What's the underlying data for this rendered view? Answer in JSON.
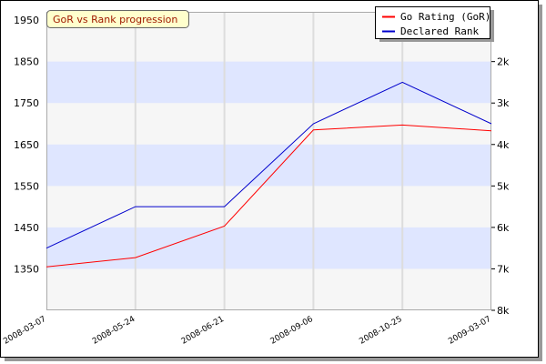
{
  "chart_data": {
    "type": "line",
    "title": "GoR vs Rank progression",
    "x": [
      "2008-03-07",
      "2008-05-24",
      "2008-06-21",
      "2008-09-06",
      "2008-10-25",
      "2009-03-07"
    ],
    "y_left_ticks": [
      "1950",
      "1850",
      "1750",
      "1650",
      "1550",
      "1450",
      "1350"
    ],
    "y_left_tick_values": [
      1950,
      1850,
      1750,
      1650,
      1550,
      1450,
      1350
    ],
    "y_right_ticks": [
      "2k",
      "3k",
      "4k",
      "5k",
      "6k",
      "7k",
      "8k"
    ],
    "y_right_tick_values": [
      1850,
      1750,
      1650,
      1550,
      1450,
      1350,
      1250
    ],
    "ylim": [
      1250,
      1970
    ],
    "series": [
      {
        "name": "Go Rating (GoR)",
        "color": "#ff0000",
        "values": [
          1355,
          1377,
          1453,
          1685,
          1697,
          1683
        ]
      },
      {
        "name": "Declared Rank",
        "color": "#0000cc",
        "values": [
          1400,
          1500,
          1500,
          1700,
          1800,
          1700
        ]
      }
    ],
    "bands": [
      [
        1750,
        1850
      ],
      [
        1550,
        1650
      ],
      [
        1350,
        1450
      ]
    ],
    "colors": {
      "band": "#dfe6ff",
      "plot_bg": "#f6f6f6",
      "grid": "#dddddd",
      "title_bg": "#ffffcc"
    },
    "legend_position": "top-right",
    "grid": true
  }
}
